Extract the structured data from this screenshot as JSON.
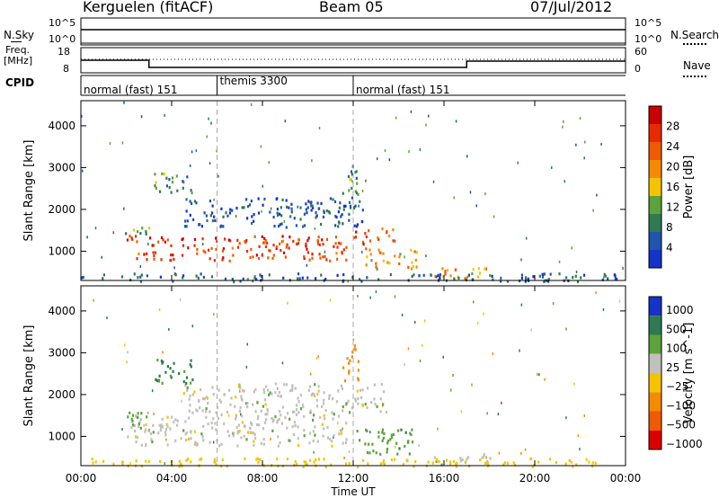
{
  "header": {
    "station": "Kerguelen (fitACF)",
    "beam": "Beam 05",
    "date": "07/Jul/2012"
  },
  "strip_labels": {
    "nsky": "N.Sky",
    "nsky_ticks": [
      "10^5",
      "10^0"
    ],
    "nsearch": "N.Search",
    "nsearch_ticks": [
      "10^5",
      "10^0"
    ],
    "freq_line1": "Freq.",
    "freq_line2": "[MHz]",
    "freq_ticks": [
      "18",
      "8"
    ],
    "nave": "Nave",
    "nave_ticks": [
      "60",
      "0"
    ],
    "cpid": "CPID"
  },
  "cpid_segments": [
    {
      "label": "normal (fast) 151",
      "start_hour": 0,
      "end_hour": 6
    },
    {
      "label": "themis 3300",
      "start_hour": 6,
      "end_hour": 12
    },
    {
      "label": "normal (fast) 151",
      "start_hour": 12,
      "end_hour": 24
    }
  ],
  "time_axis": {
    "label": "Time UT",
    "ticks": [
      "00:00",
      "04:00",
      "08:00",
      "12:00",
      "16:00",
      "20:00",
      "00:00"
    ]
  },
  "colors": {
    "power_scale": [
      "#1533c9",
      "#1f55ad",
      "#2e7a52",
      "#5da33b",
      "#f5c400",
      "#f58a00",
      "#f05a00",
      "#e82a00",
      "#cc0000"
    ],
    "velocity_scale": [
      "#1533c9",
      "#2e7a52",
      "#5da33b",
      "#c0c0bc",
      "#f5c400",
      "#f58a00",
      "#f05a00",
      "#dd0000"
    ]
  },
  "chart_data": [
    {
      "type": "heatmap",
      "ylabel": "Slant Range [km]",
      "ylim": [
        300,
        4600
      ],
      "yticks": [
        "1000",
        "2000",
        "3000",
        "4000"
      ],
      "xlim_hours": [
        0,
        24
      ],
      "colorbar": {
        "label": "Power [dB]",
        "ticks": [
          "4",
          "8",
          "12",
          "16",
          "20",
          "24",
          "28"
        ],
        "range": [
          0,
          32
        ]
      },
      "features": [
        {
          "t_start": 2.0,
          "t_end": 11.7,
          "range_start": 800,
          "range_end": 1400,
          "value": 26
        },
        {
          "t_start": 1.8,
          "t_end": 3.0,
          "range_start": 1400,
          "range_end": 1650,
          "value": 12
        },
        {
          "t_start": 3.2,
          "t_end": 5.0,
          "range_start": 2400,
          "range_end": 2900,
          "value": 10
        },
        {
          "t_start": 4.5,
          "t_end": 12.5,
          "range_start": 1600,
          "range_end": 2300,
          "value": 5
        },
        {
          "t_start": 11.5,
          "t_end": 12.2,
          "range_start": 2300,
          "range_end": 3200,
          "value": 10
        },
        {
          "t_start": 12.0,
          "t_end": 13.8,
          "range_start": 1200,
          "range_end": 1600,
          "value": 24
        },
        {
          "t_start": 12.5,
          "t_end": 14.8,
          "range_start": 600,
          "range_end": 1100,
          "value": 18
        },
        {
          "t_start": 15.5,
          "t_end": 18.0,
          "range_start": 350,
          "range_end": 700,
          "value": 20
        },
        {
          "t_start": 0.0,
          "t_end": 24.0,
          "range_start": 300,
          "range_end": 500,
          "value": 6
        }
      ]
    },
    {
      "type": "heatmap",
      "ylabel": "Slant Range [km]",
      "ylim": [
        300,
        4600
      ],
      "yticks": [
        "1000",
        "2000",
        "3000",
        "4000"
      ],
      "xlim_hours": [
        0,
        24
      ],
      "colorbar": {
        "label": "Velocity [m s^-1]",
        "ticks": [
          "1000",
          "500",
          "100",
          "25",
          "-25",
          "-100",
          "-500",
          "-1000"
        ]
      },
      "features": [
        {
          "t_start": 2.0,
          "t_end": 11.7,
          "range_start": 800,
          "range_end": 1600,
          "value": 0
        },
        {
          "t_start": 4.5,
          "t_end": 13.5,
          "range_start": 1600,
          "range_end": 2300,
          "value": 0
        },
        {
          "t_start": 1.8,
          "t_end": 3.0,
          "range_start": 1300,
          "range_end": 1650,
          "value": 60
        },
        {
          "t_start": 3.2,
          "t_end": 5.0,
          "range_start": 2300,
          "range_end": 2900,
          "value": 150
        },
        {
          "t_start": 11.5,
          "t_end": 12.2,
          "range_start": 2300,
          "range_end": 3200,
          "value": -300
        },
        {
          "t_start": 12.0,
          "t_end": 14.8,
          "range_start": 600,
          "range_end": 1200,
          "value": 70
        },
        {
          "t_start": 15.5,
          "t_end": 18.0,
          "range_start": 350,
          "range_end": 600,
          "value": 0
        },
        {
          "t_start": 0.0,
          "t_end": 24.0,
          "range_start": 300,
          "range_end": 500,
          "value": -60
        }
      ]
    }
  ]
}
